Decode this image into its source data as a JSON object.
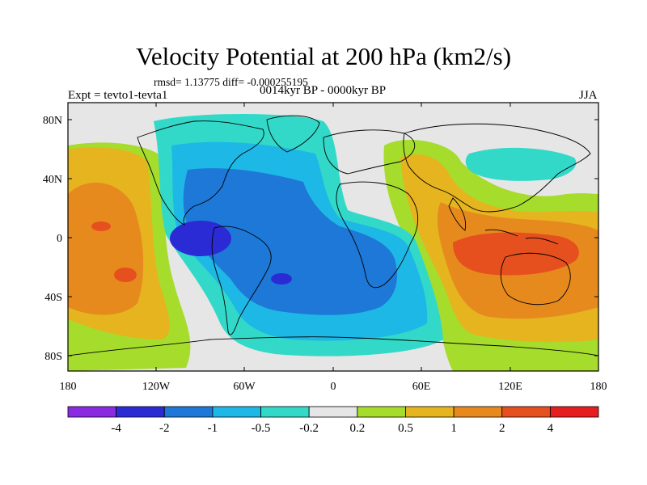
{
  "title": "Velocity Potential at 200 hPa (km2/s)",
  "stats": "rmsd= 1.13775 diff= -0.000255195",
  "subtitle": "0014kyr BP - 0000kyr BP",
  "left_label": "Expt = tevto1-tevta1",
  "right_label": "JJA",
  "lat_ticks": [
    "80N",
    "40N",
    "0",
    "40S",
    "80S"
  ],
  "lon_ticks": [
    "180",
    "120W",
    "60W",
    "0",
    "60E",
    "120E",
    "180"
  ],
  "colorbar": {
    "colors": [
      "#8a2be2",
      "#2b2bd6",
      "#1e78d7",
      "#1eb8e6",
      "#33d9c8",
      "#e6e6e6",
      "#a6dc2c",
      "#e6b41e",
      "#e68a1e",
      "#e6501e",
      "#e61e1e"
    ],
    "labels": [
      "-4",
      "-2",
      "-1",
      "-0.5",
      "-0.2",
      "0.2",
      "0.5",
      "1",
      "2",
      "4"
    ]
  }
}
